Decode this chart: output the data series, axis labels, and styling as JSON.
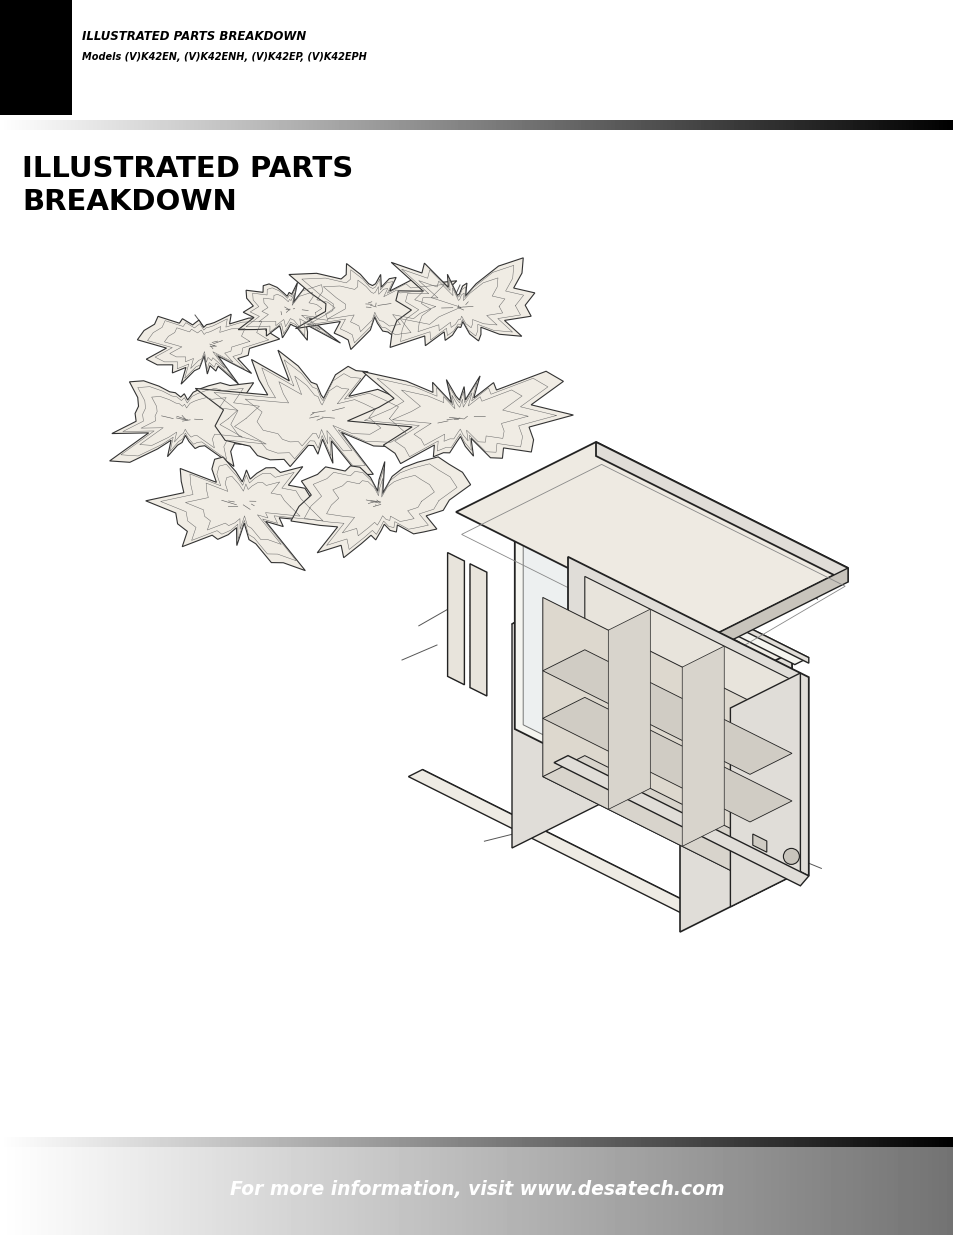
{
  "header_title": "ILLUSTRATED PARTS BREAKDOWN",
  "header_subtitle": "Models (V)K42EN, (V)K42ENH, (V)K42EP, (V)K42EPH",
  "page_title_line1": "ILLUSTRATED PARTS",
  "page_title_line2": "BREAKDOWN",
  "footer_text": "For more information, visit www.desatech.com",
  "bg_color": "#ffffff",
  "header_bg": "#000000",
  "title_color": "#000000",
  "header_text_color": "#000000",
  "footer_text_color": "#ffffff",
  "line_color": "#222222",
  "fill_light": "#f5f5f0",
  "fill_medium": "#e0ddd8",
  "fill_dark": "#c8c4bc"
}
